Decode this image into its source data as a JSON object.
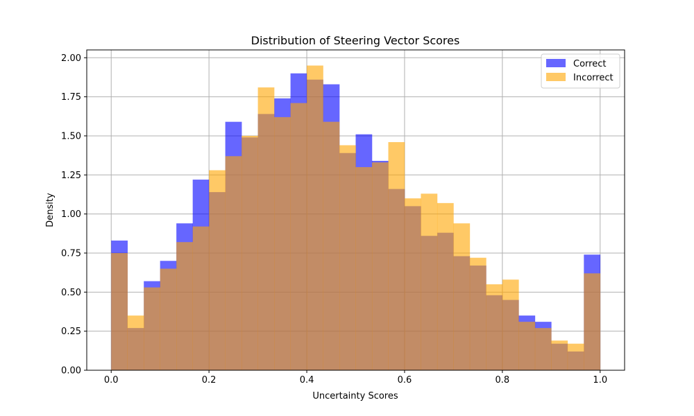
{
  "chart_data": {
    "type": "histogram",
    "title": "Distribution of Steering Vector Scores",
    "xlabel": "Uncertainty Scores",
    "ylabel": "Density",
    "xlim": [
      -0.05,
      1.05
    ],
    "ylim": [
      0,
      2.05
    ],
    "grid": true,
    "legend_position": "top-right",
    "bin_edges": [
      0.0,
      0.0333,
      0.0667,
      0.1,
      0.1333,
      0.1667,
      0.2,
      0.2333,
      0.2667,
      0.3,
      0.3333,
      0.3667,
      0.4,
      0.4333,
      0.4667,
      0.5,
      0.5333,
      0.5667,
      0.6,
      0.6333,
      0.6667,
      0.7,
      0.7333,
      0.7667,
      0.8,
      0.8333,
      0.8667,
      0.9,
      0.9333,
      0.9667,
      1.0
    ],
    "x_ticks": [
      "0.0",
      "0.2",
      "0.4",
      "0.6",
      "0.8",
      "1.0"
    ],
    "x_tick_values": [
      0.0,
      0.2,
      0.4,
      0.6,
      0.8,
      1.0
    ],
    "y_ticks": [
      "0.00",
      "0.25",
      "0.50",
      "0.75",
      "1.00",
      "1.25",
      "1.50",
      "1.75",
      "2.00"
    ],
    "y_tick_values": [
      0.0,
      0.25,
      0.5,
      0.75,
      1.0,
      1.25,
      1.5,
      1.75,
      2.0
    ],
    "series": [
      {
        "name": "Correct",
        "color": "#0000ff",
        "opacity": 0.6,
        "values": [
          0.83,
          0.27,
          0.57,
          0.7,
          0.94,
          1.22,
          1.14,
          1.59,
          1.49,
          1.64,
          1.74,
          1.9,
          1.86,
          1.83,
          1.39,
          1.51,
          1.34,
          1.16,
          1.05,
          0.86,
          0.88,
          0.73,
          0.67,
          0.48,
          0.45,
          0.35,
          0.31,
          0.17,
          0.12,
          0.74
        ]
      },
      {
        "name": "Incorrect",
        "color": "#ffa500",
        "opacity": 0.6,
        "values": [
          0.75,
          0.35,
          0.53,
          0.65,
          0.82,
          0.92,
          1.28,
          1.37,
          1.5,
          1.81,
          1.62,
          1.71,
          1.95,
          1.59,
          1.44,
          1.3,
          1.33,
          1.46,
          1.1,
          1.13,
          1.07,
          0.94,
          0.72,
          0.55,
          0.58,
          0.31,
          0.27,
          0.19,
          0.17,
          0.62
        ]
      }
    ]
  }
}
